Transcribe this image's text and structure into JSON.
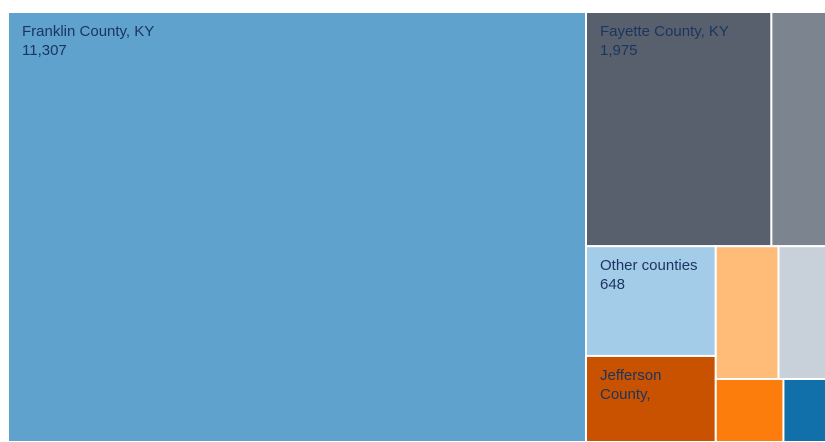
{
  "chart_data": {
    "type": "treemap",
    "items": [
      {
        "name": "Franklin County, KY",
        "value": 11307,
        "value_label": "11,307",
        "color": "#5fa2ce"
      },
      {
        "name": "Fayette County, KY",
        "value": 1975,
        "value_label": "1,975",
        "color": "#57606c"
      },
      {
        "name": null,
        "value": 582,
        "color": "#7b848f"
      },
      {
        "name": "Other counties",
        "value": 648,
        "value_label": "648",
        "color": "#a3cce9"
      },
      {
        "name": "Jefferson County,",
        "value": 508,
        "color": "#c85200"
      },
      {
        "name": null,
        "value": 379,
        "color": "#ffbc79"
      },
      {
        "name": null,
        "value": 287,
        "color": "#c8d0d9"
      },
      {
        "name": null,
        "value": 194,
        "color": "#fc7d0b"
      },
      {
        "name": null,
        "value": 122,
        "color": "#1170aa"
      }
    ]
  }
}
